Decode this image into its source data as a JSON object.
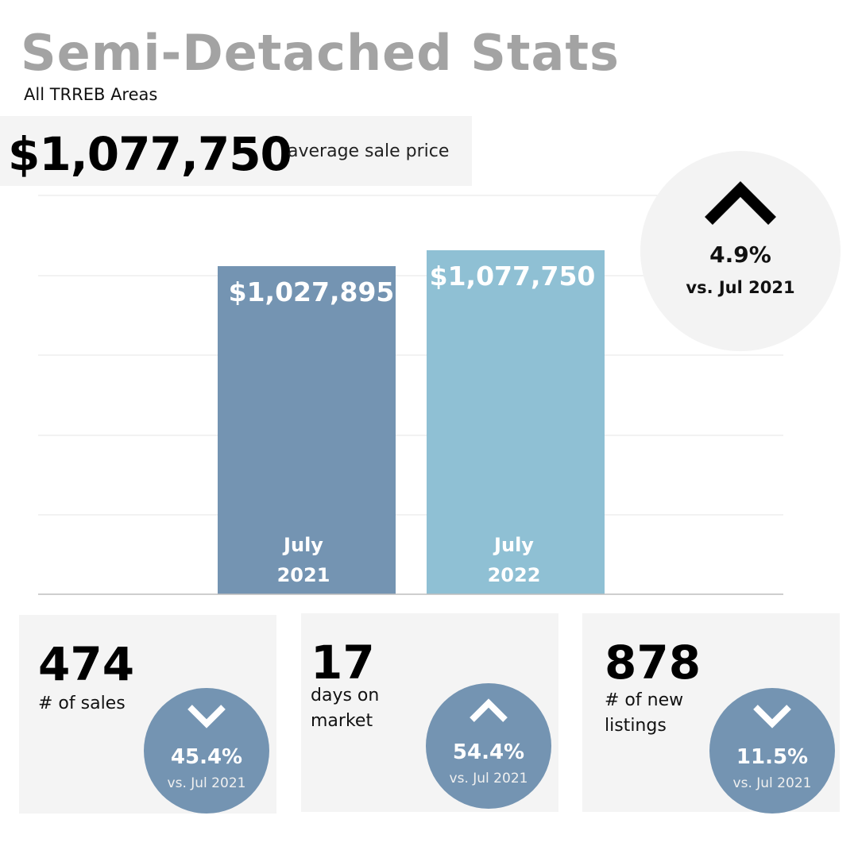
{
  "header": {
    "title": "Semi-Detached Stats",
    "subtitle": "All TRREB Areas"
  },
  "average": {
    "value": "$1,077,750",
    "label": "average sale price"
  },
  "change": {
    "direction": "up",
    "percent": "4.9%",
    "compare": "vs. Jul 2021"
  },
  "chart_data": {
    "type": "bar",
    "categories": [
      "July 2021",
      "July 2022"
    ],
    "category_lines": [
      [
        "July",
        "2021"
      ],
      [
        "July",
        "2022"
      ]
    ],
    "values": [
      1027895,
      1077750
    ],
    "value_labels": [
      "$1,027,895",
      "$1,077,750"
    ],
    "colors": [
      "#7494b2",
      "#8fc0d4"
    ],
    "title": "",
    "xlabel": "",
    "ylabel": "",
    "grid": true
  },
  "stats": [
    {
      "value": "474",
      "label_lines": [
        "# of sales"
      ],
      "direction": "down",
      "percent": "45.4%",
      "compare": "vs. Jul 2021"
    },
    {
      "value": "17",
      "label_lines": [
        "days on",
        "market"
      ],
      "direction": "up",
      "percent": "54.4%",
      "compare": "vs. Jul 2021"
    },
    {
      "value": "878",
      "label_lines": [
        "# of new",
        "listings"
      ],
      "direction": "down",
      "percent": "11.5%",
      "compare": "vs. Jul 2021"
    }
  ]
}
